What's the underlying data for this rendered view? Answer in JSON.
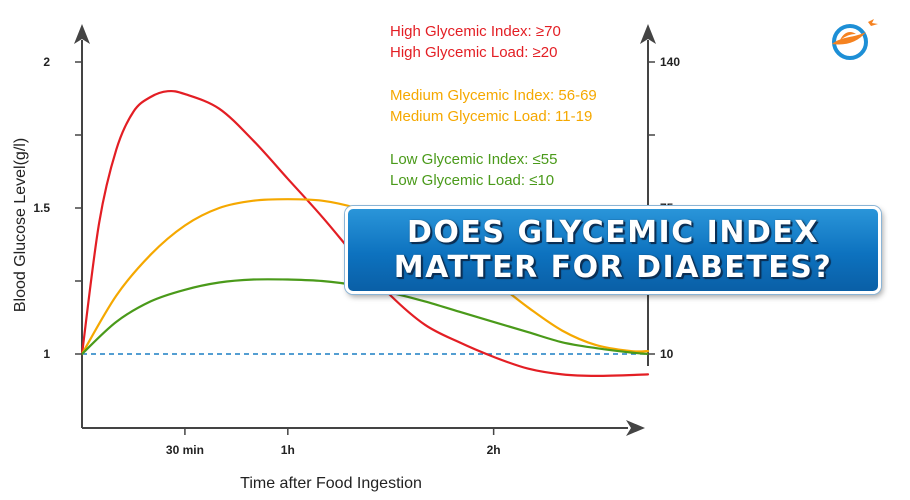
{
  "chart_data": {
    "type": "line",
    "xlabel": "Time after Food Ingestion",
    "ylabel": "Blood Glucose Level(g/l)",
    "x_ticks": [
      {
        "value": 30,
        "label": "30 min"
      },
      {
        "value": 60,
        "label": "1h"
      },
      {
        "value": 120,
        "label": "2h"
      }
    ],
    "xlim": [
      0,
      165
    ],
    "ylim": [
      0.75,
      2.1
    ],
    "y_ticks": [
      {
        "value": 1,
        "label": "1"
      },
      {
        "value": 1.5,
        "label": "1.5"
      },
      {
        "value": 2,
        "label": "2"
      }
    ],
    "y_minor_ticks": [
      1.25,
      1.75
    ],
    "right_axis_ticks": [
      {
        "value": 1,
        "label": "10"
      },
      {
        "value": 1.5,
        "label": "75"
      },
      {
        "value": 2,
        "label": "140"
      }
    ],
    "right_axis_minor_ticks": [
      1.25,
      1.75
    ],
    "baseline": 1,
    "series": [
      {
        "key": "high",
        "color": "#e31e24",
        "x": [
          0,
          5,
          10,
          15,
          20,
          25,
          30,
          40,
          50,
          60,
          70,
          80,
          90,
          100,
          110,
          120,
          130,
          140,
          150,
          165
        ],
        "y": [
          1.0,
          1.45,
          1.7,
          1.83,
          1.88,
          1.9,
          1.89,
          1.84,
          1.73,
          1.6,
          1.47,
          1.33,
          1.2,
          1.1,
          1.04,
          0.99,
          0.95,
          0.93,
          0.925,
          0.93
        ]
      },
      {
        "key": "medium",
        "color": "#f5a800",
        "x": [
          0,
          10,
          20,
          30,
          40,
          50,
          60,
          70,
          80,
          90,
          100,
          110,
          120,
          130,
          140,
          150,
          160,
          165
        ],
        "y": [
          1.0,
          1.2,
          1.34,
          1.44,
          1.5,
          1.525,
          1.53,
          1.525,
          1.5,
          1.46,
          1.4,
          1.33,
          1.25,
          1.16,
          1.08,
          1.03,
          1.01,
          1.01
        ]
      },
      {
        "key": "low",
        "color": "#4a9a1a",
        "x": [
          0,
          10,
          20,
          30,
          40,
          50,
          60,
          70,
          80,
          90,
          100,
          110,
          120,
          130,
          140,
          150,
          160,
          165
        ],
        "y": [
          1.0,
          1.11,
          1.18,
          1.22,
          1.245,
          1.255,
          1.255,
          1.25,
          1.235,
          1.21,
          1.18,
          1.145,
          1.11,
          1.075,
          1.04,
          1.02,
          1.005,
          1.0
        ]
      }
    ],
    "legend_text": [
      {
        "key": "high",
        "color": "#e31e24",
        "lines": [
          "High Glycemic Index: ≥70",
          "High Glycemic Load:  ≥20"
        ]
      },
      {
        "key": "medium",
        "color": "#f5a800",
        "lines": [
          "Medium Glycemic Index: 56-69",
          "Medium Glycemic Load:  11-19"
        ]
      },
      {
        "key": "low",
        "color": "#4a9a1a",
        "lines": [
          "Low Glycemic Index: ≤55",
          "Low Glycemic Load:  ≤10"
        ]
      }
    ]
  },
  "banner": {
    "line1": "DOES GLYCEMIC INDEX",
    "line2": "MATTER FOR DIABETES?"
  },
  "logo": {
    "icon": "bird-circle-logo-icon",
    "color_orange": "#f58220",
    "color_blue": "#1d8fd6"
  }
}
